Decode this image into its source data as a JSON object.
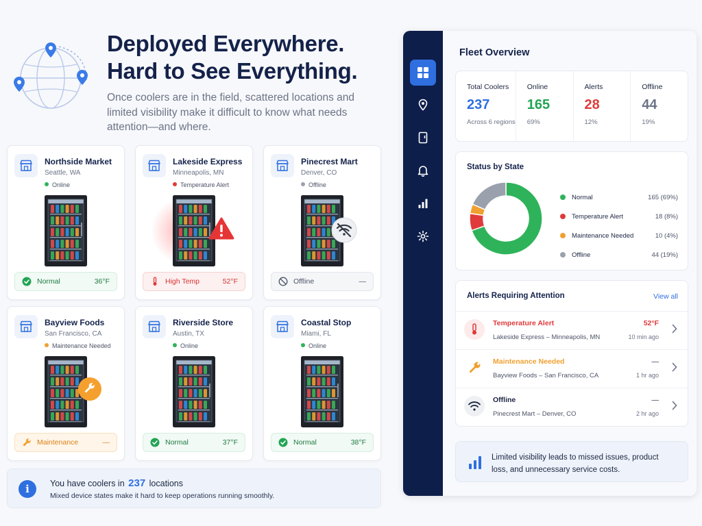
{
  "hero": {
    "title_line1": "Deployed Everywhere.",
    "title_line2": "Hard to See Everything.",
    "subtitle": "Once coolers are in the field, scattered locations and limited visibility make it difficult to know what needs attention—and where."
  },
  "stores": [
    {
      "name": "Northside Market",
      "location": "Seattle, WA",
      "state": "Online",
      "state_color": "#2fb35a",
      "pill_label": "Normal",
      "pill_value": "36°F",
      "pill_type": "normal"
    },
    {
      "name": "Lakeside Express",
      "location": "Minneapolis, MN",
      "state": "Temperature Alert",
      "state_color": "#e03a3a",
      "pill_label": "High Temp",
      "pill_value": "52°F",
      "pill_type": "hot"
    },
    {
      "name": "Pinecrest Mart",
      "location": "Denver, CO",
      "state": "Offline",
      "state_color": "#9aa1ad",
      "pill_label": "Offline",
      "pill_value": "—",
      "pill_type": "off"
    },
    {
      "name": "Bayview Foods",
      "location": "San Francisco, CA",
      "state": "Maintenance Needed",
      "state_color": "#f0a030",
      "pill_label": "Maintenance",
      "pill_value": "—",
      "pill_type": "maint"
    },
    {
      "name": "Riverside Store",
      "location": "Austin, TX",
      "state": "Online",
      "state_color": "#2fb35a",
      "pill_label": "Normal",
      "pill_value": "37°F",
      "pill_type": "normal"
    },
    {
      "name": "Coastal Stop",
      "location": "Miami, FL",
      "state": "Online",
      "state_color": "#2fb35a",
      "pill_label": "Normal",
      "pill_value": "38°F",
      "pill_type": "normal"
    }
  ],
  "infobar": {
    "prefix": "You have coolers in",
    "count": "237",
    "suffix": "locations",
    "line2": "Mixed device states make it hard to keep operations running smoothly."
  },
  "dashboard": {
    "title": "Fleet Overview",
    "nav_icons": [
      "grid-icon",
      "map-pin-icon",
      "cooler-icon",
      "bell-icon",
      "bar-chart-icon",
      "gear-icon"
    ],
    "kpis": [
      {
        "label": "Total Coolers",
        "value": "237",
        "sub": "Across 6 regions",
        "color": "#2f6fe0"
      },
      {
        "label": "Online",
        "value": "165",
        "sub": "69%",
        "color": "#22a455"
      },
      {
        "label": "Alerts",
        "value": "28",
        "sub": "12%",
        "color": "#e03a3a"
      },
      {
        "label": "Offline",
        "value": "44",
        "sub": "19%",
        "color": "#6b7386"
      }
    ],
    "status_title": "Status by State",
    "alerts_title": "Alerts Requiring Attention",
    "view_all": "View all",
    "alerts": [
      {
        "title": "Temperature Alert",
        "title_color": "#e03a3a",
        "sub": "Lakeside Express – Minneapolis, MN",
        "value": "52°F",
        "value_color": "#e03a3a",
        "time": "10 min ago",
        "icon": "thermometer-icon"
      },
      {
        "title": "Maintenance Needed",
        "title_color": "#f0a030",
        "sub": "Bayview Foods – San Francisco, CA",
        "value": "—",
        "value_color": "#6b7386",
        "time": "1 hr ago",
        "icon": "wrench-icon"
      },
      {
        "title": "Offline",
        "title_color": "#1b2540",
        "sub": "Pinecrest Mart – Denver, CO",
        "value": "—",
        "value_color": "#6b7386",
        "time": "2 hr ago",
        "icon": "wifi-off-icon"
      }
    ],
    "note": "Limited visibility leads to missed issues, product loss, and unnecessary service costs."
  },
  "chart_data": {
    "type": "pie",
    "categories": [
      "Normal",
      "Temperature Alert",
      "Maintenance Needed",
      "Offline"
    ],
    "values": [
      165,
      18,
      10,
      44
    ],
    "percent_labels": [
      "165 (69%)",
      "18 (8%)",
      "10 (4%)",
      "44 (19%)"
    ],
    "colors": [
      "#2fb35a",
      "#e03a3a",
      "#f0a030",
      "#9aa1ad"
    ],
    "title": "Status by State",
    "legend": "right"
  }
}
